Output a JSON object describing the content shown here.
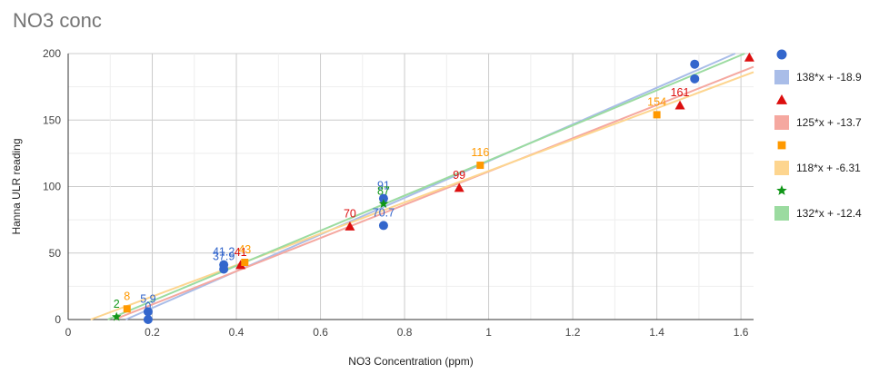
{
  "chart_data": {
    "type": "scatter",
    "title": "NO3 conc",
    "xlabel": "NO3 Concentration (ppm)",
    "ylabel": "Hanna ULR reading",
    "xlim": [
      0,
      1.63
    ],
    "ylim": [
      0,
      200
    ],
    "xticks": [
      0,
      0.2,
      0.4,
      0.6,
      0.8,
      1,
      1.2,
      1.4,
      1.6
    ],
    "xtick_labels": [
      "0",
      "0.2",
      "0.4",
      "0.6",
      "0.8",
      "1",
      "1.2",
      "1.4",
      "1.6"
    ],
    "yticks": [
      0,
      50,
      100,
      150,
      200
    ],
    "ytick_labels": [
      "0",
      "50",
      "100",
      "150",
      "200"
    ],
    "grid": true,
    "legend_position": "right",
    "series": [
      {
        "marker": "circle",
        "color": "#3366cc",
        "trendline_color": "#a9bde8",
        "trendline": {
          "slope": 138,
          "intercept": -18.9,
          "label": "138*x + -18.9"
        },
        "points": [
          {
            "x": 0.19,
            "y": 5.9,
            "label": "5.9"
          },
          {
            "x": 0.19,
            "y": 0,
            "label": "0"
          },
          {
            "x": 0.37,
            "y": 41.2,
            "label": "41.2"
          },
          {
            "x": 0.37,
            "y": 37.9,
            "label": "37.9"
          },
          {
            "x": 0.75,
            "y": 91,
            "label": "91"
          },
          {
            "x": 0.75,
            "y": 70.7,
            "label": "70.7"
          },
          {
            "x": 1.49,
            "y": 192,
            "label": ""
          },
          {
            "x": 1.49,
            "y": 181,
            "label": ""
          }
        ]
      },
      {
        "marker": "triangle",
        "color": "#dc0e0e",
        "trendline_color": "#f5a8a0",
        "trendline": {
          "slope": 125,
          "intercept": -13.7,
          "label": "125*x + -13.7"
        },
        "points": [
          {
            "x": 0.41,
            "y": 41,
            "label": "41"
          },
          {
            "x": 0.67,
            "y": 70,
            "label": "70"
          },
          {
            "x": 0.93,
            "y": 99,
            "label": "99"
          },
          {
            "x": 1.455,
            "y": 161,
            "label": "161"
          },
          {
            "x": 1.62,
            "y": 197,
            "label": ""
          }
        ]
      },
      {
        "marker": "square",
        "color": "#ff9900",
        "trendline_color": "#fdd58f",
        "trendline": {
          "slope": 118,
          "intercept": -6.31,
          "label": "118*x + -6.31"
        },
        "points": [
          {
            "x": 0.14,
            "y": 8,
            "label": "8"
          },
          {
            "x": 0.42,
            "y": 43,
            "label": "43"
          },
          {
            "x": 0.98,
            "y": 116,
            "label": "116"
          },
          {
            "x": 1.4,
            "y": 154,
            "label": "154"
          }
        ]
      },
      {
        "marker": "star",
        "color": "#109618",
        "trendline_color": "#9bdba0",
        "trendline": {
          "slope": 132,
          "intercept": -12.4,
          "label": "132*x + -12.4"
        },
        "points": [
          {
            "x": 0.115,
            "y": 2,
            "label": "2"
          },
          {
            "x": 0.75,
            "y": 87,
            "label": "87"
          }
        ]
      }
    ]
  }
}
